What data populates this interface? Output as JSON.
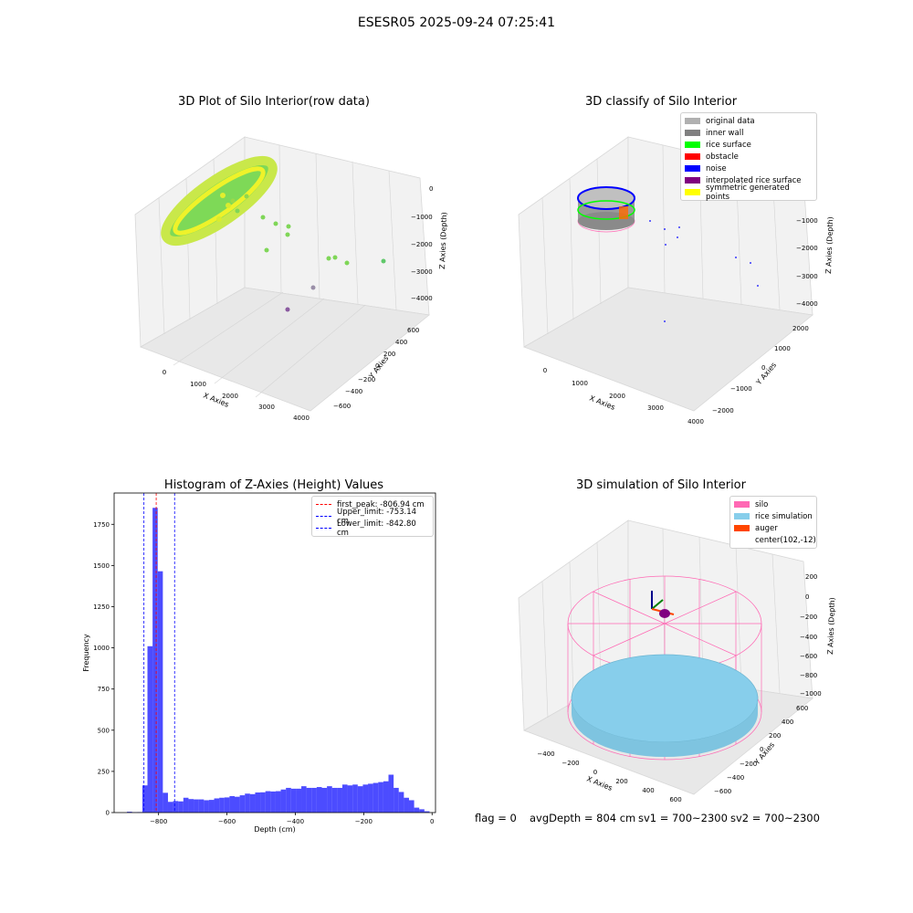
{
  "suptitle": "ESESR05 2025-09-24 07:25:41",
  "panels": {
    "raw": {
      "title": "3D Plot of Silo Interior(row data)",
      "xlabel": "X Axies",
      "ylabel": "Y Axies",
      "zlabel": "Z Axies (Depth)",
      "xticks": [
        "0",
        "1000",
        "2000",
        "3000",
        "4000"
      ],
      "yticks": [
        "600",
        "400",
        "200",
        "0",
        "−200",
        "−400",
        "−600"
      ],
      "zticks": [
        "0",
        "−1000",
        "−2000",
        "−3000",
        "−4000"
      ]
    },
    "classify": {
      "title": "3D classify of Silo Interior",
      "xlabel": "X Axies",
      "ylabel": "Y Axies",
      "zlabel": "Z Axies (Depth)",
      "xticks": [
        "0",
        "1000",
        "2000",
        "3000",
        "4000"
      ],
      "yticks": [
        "2000",
        "1000",
        "0",
        "−1000",
        "−2000"
      ],
      "zticks": [
        "0",
        "−1000",
        "−2000",
        "−3000",
        "−4000"
      ],
      "legend": [
        {
          "label": "original data",
          "color": "#b0b0b0"
        },
        {
          "label": "inner wall",
          "color": "#808080"
        },
        {
          "label": "rice surface",
          "color": "#00ff00"
        },
        {
          "label": "obstacle",
          "color": "#ff0000"
        },
        {
          "label": "noise",
          "color": "#0000ff"
        },
        {
          "label": "interpolated rice surface",
          "color": "#800080"
        },
        {
          "label": "symmetric generated points",
          "color": "#ffff00"
        }
      ]
    },
    "simulation": {
      "title": "3D simulation of Silo Interior",
      "xlabel": "X Axies",
      "ylabel": "Y Axies",
      "zlabel": "Z Axies (Depth)",
      "xticks": [
        "−400",
        "−200",
        "0",
        "200",
        "400",
        "600"
      ],
      "yticks": [
        "600",
        "400",
        "200",
        "0",
        "−200",
        "−400",
        "−600"
      ],
      "zticks": [
        "200",
        "0",
        "−200",
        "−400",
        "−600",
        "−800",
        "−1000"
      ],
      "legend": [
        {
          "label": "silo",
          "color": "#ff69b4"
        },
        {
          "label": "rice simulation",
          "color": "#87ceeb"
        },
        {
          "label": "auger",
          "color": "#ff4500"
        },
        {
          "label": "center(102,-12)",
          "color": ""
        }
      ]
    }
  },
  "footer": {
    "flag": "flag = 0",
    "avg": "avgDepth = 804 cm",
    "sv1": "sv1 = 700~2300",
    "sv2": "sv2 = 700~2300"
  },
  "chart_data": {
    "type": "bar",
    "title": "Histogram of Z-Axies (Height) Values",
    "xlabel": "Depth (cm)",
    "ylabel": "Frequency",
    "xlim": [
      -930,
      10
    ],
    "ylim": [
      0,
      1940
    ],
    "xticks": [
      -800,
      -600,
      -400,
      -200,
      0
    ],
    "yticks": [
      0,
      250,
      500,
      750,
      1000,
      1250,
      1500,
      1750
    ],
    "bar_color": "#0000ff",
    "bar_width": 15,
    "bars": [
      {
        "x": -885,
        "y": 5
      },
      {
        "x": -870,
        "y": 2
      },
      {
        "x": -855,
        "y": 3
      },
      {
        "x": -840,
        "y": 165
      },
      {
        "x": -825,
        "y": 1010
      },
      {
        "x": -810,
        "y": 1850
      },
      {
        "x": -795,
        "y": 1465
      },
      {
        "x": -780,
        "y": 120
      },
      {
        "x": -765,
        "y": 65
      },
      {
        "x": -750,
        "y": 70
      },
      {
        "x": -735,
        "y": 68
      },
      {
        "x": -720,
        "y": 90
      },
      {
        "x": -705,
        "y": 82
      },
      {
        "x": -690,
        "y": 80
      },
      {
        "x": -675,
        "y": 80
      },
      {
        "x": -660,
        "y": 75
      },
      {
        "x": -645,
        "y": 77
      },
      {
        "x": -630,
        "y": 86
      },
      {
        "x": -615,
        "y": 90
      },
      {
        "x": -600,
        "y": 92
      },
      {
        "x": -585,
        "y": 100
      },
      {
        "x": -570,
        "y": 96
      },
      {
        "x": -555,
        "y": 105
      },
      {
        "x": -540,
        "y": 115
      },
      {
        "x": -525,
        "y": 112
      },
      {
        "x": -510,
        "y": 122
      },
      {
        "x": -495,
        "y": 123
      },
      {
        "x": -480,
        "y": 130
      },
      {
        "x": -465,
        "y": 128
      },
      {
        "x": -450,
        "y": 130
      },
      {
        "x": -435,
        "y": 140
      },
      {
        "x": -420,
        "y": 150
      },
      {
        "x": -405,
        "y": 145
      },
      {
        "x": -390,
        "y": 145
      },
      {
        "x": -375,
        "y": 160
      },
      {
        "x": -360,
        "y": 150
      },
      {
        "x": -345,
        "y": 150
      },
      {
        "x": -330,
        "y": 155
      },
      {
        "x": -315,
        "y": 150
      },
      {
        "x": -300,
        "y": 160
      },
      {
        "x": -285,
        "y": 150
      },
      {
        "x": -270,
        "y": 150
      },
      {
        "x": -255,
        "y": 170
      },
      {
        "x": -240,
        "y": 165
      },
      {
        "x": -225,
        "y": 170
      },
      {
        "x": -210,
        "y": 160
      },
      {
        "x": -195,
        "y": 170
      },
      {
        "x": -180,
        "y": 175
      },
      {
        "x": -165,
        "y": 180
      },
      {
        "x": -150,
        "y": 185
      },
      {
        "x": -135,
        "y": 190
      },
      {
        "x": -120,
        "y": 230
      },
      {
        "x": -105,
        "y": 150
      },
      {
        "x": -90,
        "y": 125
      },
      {
        "x": -75,
        "y": 90
      },
      {
        "x": -60,
        "y": 75
      },
      {
        "x": -45,
        "y": 30
      },
      {
        "x": -30,
        "y": 20
      },
      {
        "x": -15,
        "y": 8
      }
    ],
    "vlines": [
      {
        "label": "first_peak: -806.94 cm",
        "x": -806.94,
        "color": "#ff0000"
      },
      {
        "label": "Upper_limit: -753.14 cm",
        "x": -753.14,
        "color": "#0000ff"
      },
      {
        "label": "Lower_limit: -842.80 cm",
        "x": -842.8,
        "color": "#0000ff"
      }
    ]
  }
}
